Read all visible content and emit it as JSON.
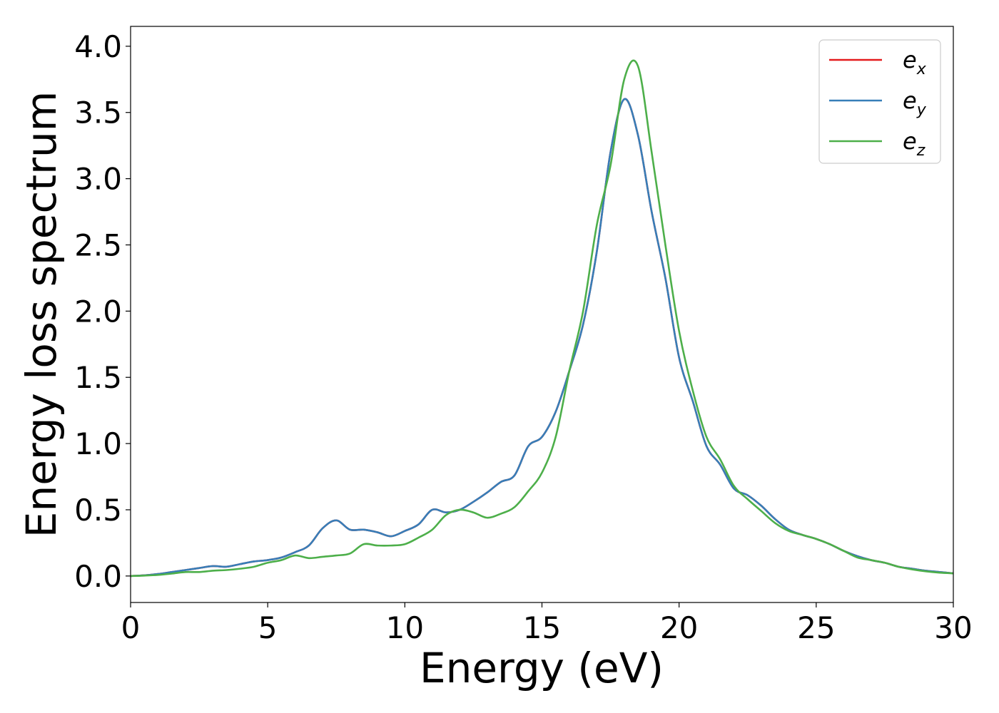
{
  "chart_data": {
    "type": "line",
    "title": "",
    "xlabel": "Energy (eV)",
    "ylabel": "Energy loss spectrum",
    "xlim": [
      0,
      30
    ],
    "ylim": [
      -0.2,
      4.15
    ],
    "xticks": [
      0,
      5,
      10,
      15,
      20,
      25,
      30
    ],
    "xtick_labels": [
      "0",
      "5",
      "10",
      "15",
      "20",
      "25",
      "30"
    ],
    "yticks": [
      0.0,
      0.5,
      1.0,
      1.5,
      2.0,
      2.5,
      3.0,
      3.5,
      4.0
    ],
    "ytick_labels": [
      "0.0",
      "0.5",
      "1.0",
      "1.5",
      "2.0",
      "2.5",
      "3.0",
      "3.5",
      "4.0"
    ],
    "grid": false,
    "legend_position": "top-right",
    "series": [
      {
        "name": "e_x",
        "label_main": "e",
        "label_sub": "x",
        "color": "#e41a1c",
        "x": [
          0,
          0.5,
          1,
          1.5,
          2,
          2.5,
          3,
          3.5,
          4,
          4.5,
          5,
          5.5,
          6,
          6.5,
          7,
          7.5,
          8,
          8.5,
          9,
          9.5,
          10,
          10.5,
          11,
          11.5,
          12,
          12.5,
          13,
          13.5,
          14,
          14.5,
          15,
          15.5,
          16,
          16.5,
          17,
          17.5,
          18,
          18.5,
          19,
          19.5,
          20,
          20.5,
          21,
          21.5,
          22,
          22.5,
          23,
          23.5,
          24,
          24.5,
          25,
          25.5,
          26,
          26.5,
          27,
          27.5,
          28,
          28.5,
          29,
          29.5,
          30
        ],
        "y": [
          0,
          0.005,
          0.015,
          0.03,
          0.045,
          0.06,
          0.075,
          0.07,
          0.09,
          0.11,
          0.12,
          0.14,
          0.18,
          0.23,
          0.36,
          0.42,
          0.35,
          0.35,
          0.33,
          0.3,
          0.34,
          0.39,
          0.5,
          0.48,
          0.5,
          0.56,
          0.63,
          0.71,
          0.76,
          0.98,
          1.05,
          1.24,
          1.55,
          1.9,
          2.45,
          3.2,
          3.6,
          3.33,
          2.75,
          2.25,
          1.65,
          1.32,
          0.98,
          0.84,
          0.66,
          0.61,
          0.53,
          0.43,
          0.35,
          0.31,
          0.28,
          0.24,
          0.19,
          0.15,
          0.12,
          0.1,
          0.07,
          0.055,
          0.04,
          0.03,
          0.02
        ]
      },
      {
        "name": "e_y",
        "label_main": "e",
        "label_sub": "y",
        "color": "#377eb8",
        "x": [
          0,
          0.5,
          1,
          1.5,
          2,
          2.5,
          3,
          3.5,
          4,
          4.5,
          5,
          5.5,
          6,
          6.5,
          7,
          7.5,
          8,
          8.5,
          9,
          9.5,
          10,
          10.5,
          11,
          11.5,
          12,
          12.5,
          13,
          13.5,
          14,
          14.5,
          15,
          15.5,
          16,
          16.5,
          17,
          17.5,
          18,
          18.5,
          19,
          19.5,
          20,
          20.5,
          21,
          21.5,
          22,
          22.5,
          23,
          23.5,
          24,
          24.5,
          25,
          25.5,
          26,
          26.5,
          27,
          27.5,
          28,
          28.5,
          29,
          29.5,
          30
        ],
        "y": [
          0,
          0.005,
          0.015,
          0.03,
          0.045,
          0.06,
          0.075,
          0.07,
          0.09,
          0.11,
          0.12,
          0.14,
          0.18,
          0.23,
          0.36,
          0.42,
          0.35,
          0.35,
          0.33,
          0.3,
          0.34,
          0.39,
          0.5,
          0.48,
          0.5,
          0.56,
          0.63,
          0.71,
          0.76,
          0.98,
          1.05,
          1.24,
          1.55,
          1.9,
          2.45,
          3.2,
          3.6,
          3.33,
          2.75,
          2.25,
          1.65,
          1.32,
          0.98,
          0.84,
          0.66,
          0.61,
          0.53,
          0.43,
          0.35,
          0.31,
          0.28,
          0.24,
          0.19,
          0.15,
          0.12,
          0.1,
          0.07,
          0.055,
          0.04,
          0.03,
          0.02
        ]
      },
      {
        "name": "e_z",
        "label_main": "e",
        "label_sub": "z",
        "color": "#4daf4a",
        "x": [
          0,
          0.5,
          1,
          1.5,
          2,
          2.5,
          3,
          3.5,
          4,
          4.5,
          5,
          5.5,
          6,
          6.5,
          7,
          7.5,
          8,
          8.5,
          9,
          9.5,
          10,
          10.5,
          11,
          11.5,
          12,
          12.5,
          13,
          13.5,
          14,
          14.5,
          15,
          15.5,
          16,
          16.5,
          17,
          17.5,
          18,
          18.5,
          19,
          19.5,
          20,
          20.5,
          21,
          21.5,
          22,
          22.5,
          23,
          23.5,
          24,
          24.5,
          25,
          25.5,
          26,
          26.5,
          27,
          27.5,
          28,
          28.5,
          29,
          29.5,
          30
        ],
        "y": [
          0,
          0.003,
          0.008,
          0.018,
          0.03,
          0.03,
          0.04,
          0.045,
          0.055,
          0.07,
          0.1,
          0.12,
          0.155,
          0.135,
          0.145,
          0.155,
          0.17,
          0.24,
          0.23,
          0.23,
          0.24,
          0.29,
          0.35,
          0.46,
          0.5,
          0.48,
          0.44,
          0.47,
          0.52,
          0.64,
          0.78,
          1.05,
          1.55,
          2.0,
          2.65,
          3.1,
          3.75,
          3.85,
          3.2,
          2.5,
          1.85,
          1.4,
          1.05,
          0.88,
          0.68,
          0.58,
          0.49,
          0.4,
          0.34,
          0.31,
          0.28,
          0.24,
          0.19,
          0.14,
          0.12,
          0.1,
          0.07,
          0.05,
          0.035,
          0.025,
          0.02
        ]
      }
    ]
  }
}
